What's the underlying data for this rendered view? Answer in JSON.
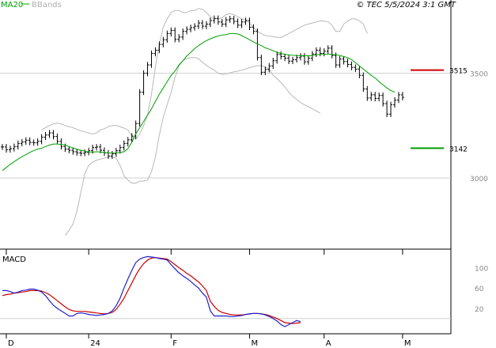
{
  "header": {
    "legend": [
      {
        "label": "MA20",
        "color": "#00a000"
      },
      {
        "label": "BBands",
        "color": "#b0b0b0"
      }
    ],
    "timestamp": "© TEC 5/5/2024 3:1 GMT"
  },
  "chart_data": [
    {
      "type": "line",
      "panel": "price",
      "title": "",
      "y_ticks": [
        {
          "label": "3500",
          "value": 3500
        },
        {
          "label": "3000",
          "value": 3000
        }
      ],
      "ylim": [
        2660,
        3850
      ],
      "x_ticks": [
        {
          "label": "D",
          "index": 1
        },
        {
          "label": "24",
          "index": 22
        },
        {
          "label": "F",
          "index": 43
        },
        {
          "label": "M",
          "index": 63
        },
        {
          "label": "A",
          "index": 82
        },
        {
          "label": "M",
          "index": 102
        }
      ],
      "levels": [
        {
          "label": "3515",
          "value": 3515,
          "color": "#cc0000"
        },
        {
          "label": "3142",
          "value": 3142,
          "color": "#00a000"
        }
      ],
      "close": [
        3148,
        3135,
        3140,
        3150,
        3165,
        3172,
        3180,
        3170,
        3168,
        3175,
        3195,
        3205,
        3215,
        3198,
        3175,
        3150,
        3138,
        3132,
        3125,
        3120,
        3118,
        3122,
        3130,
        3145,
        3148,
        3132,
        3120,
        3105,
        3115,
        3130,
        3145,
        3165,
        3182,
        3200,
        3260,
        3410,
        3500,
        3540,
        3595,
        3610,
        3638,
        3660,
        3690,
        3705,
        3662,
        3673,
        3700,
        3710,
        3718,
        3725,
        3740,
        3725,
        3735,
        3752,
        3762,
        3745,
        3735,
        3755,
        3760,
        3748,
        3730,
        3745,
        3752,
        3720,
        3700,
        3575,
        3505,
        3518,
        3535,
        3560,
        3590,
        3580,
        3572,
        3558,
        3565,
        3575,
        3582,
        3555,
        3572,
        3592,
        3610,
        3595,
        3605,
        3620,
        3585,
        3540,
        3568,
        3556,
        3542,
        3528,
        3520,
        3490,
        3425,
        3382,
        3397,
        3380,
        3394,
        3355,
        3305,
        3350,
        3372,
        3397,
        3385
      ],
      "ma20": [
        3035,
        3050,
        3065,
        3078,
        3090,
        3102,
        3112,
        3122,
        3131,
        3138,
        3142,
        3150,
        3157,
        3162,
        3162,
        3160,
        3157,
        3150,
        3142,
        3138,
        3132,
        3128,
        3124,
        3123,
        3125,
        3124,
        3122,
        3120,
        3119,
        3120,
        3122,
        3125,
        3140,
        3170,
        3210,
        3240,
        3270,
        3300,
        3330,
        3365,
        3400,
        3430,
        3460,
        3490,
        3510,
        3540,
        3560,
        3582,
        3600,
        3618,
        3632,
        3645,
        3656,
        3665,
        3672,
        3678,
        3683,
        3685,
        3690,
        3690,
        3688,
        3680,
        3670,
        3660,
        3650,
        3640,
        3632,
        3622,
        3615,
        3608,
        3600,
        3595,
        3590,
        3588,
        3586,
        3585,
        3584,
        3584,
        3583,
        3585,
        3588,
        3590,
        3590,
        3592,
        3590,
        3588,
        3585,
        3580,
        3575,
        3565,
        3550,
        3535,
        3520,
        3505,
        3490,
        3478,
        3460,
        3445,
        3430,
        3418,
        3410
      ],
      "bb_upper": [
        3230,
        3240,
        3250,
        3258,
        3262,
        3258,
        3250,
        3245,
        3240,
        3232,
        3226,
        3220,
        3215,
        3210,
        3215,
        3230,
        3235,
        3245,
        3250,
        3250,
        3245,
        3238,
        3230,
        3200,
        3185,
        3210,
        3250,
        3300,
        3400,
        3530,
        3640,
        3720,
        3760,
        3790,
        3800,
        3800,
        3790,
        3790,
        3800,
        3800,
        3810,
        3805,
        3790,
        3770,
        3760,
        3760,
        3765,
        3780,
        3785,
        3780,
        3770,
        3760,
        3755,
        3740,
        3720,
        3700,
        3690,
        3680,
        3678,
        3675,
        3672,
        3670,
        3680,
        3690,
        3700,
        3710,
        3720,
        3730,
        3735,
        3740,
        3745,
        3750,
        3750,
        3745,
        3730,
        3700,
        3700,
        3735,
        3750,
        3760,
        3760,
        3750,
        3735,
        3690
      ],
      "bb_lower": [
        2725,
        2750,
        2780,
        2840,
        2930,
        3020,
        3060,
        3075,
        3085,
        3090,
        3095,
        3100,
        3100,
        3095,
        3060,
        3010,
        2990,
        2975,
        2975,
        2985,
        2985,
        2990,
        3030,
        3100,
        3205,
        3290,
        3350,
        3410,
        3480,
        3535,
        3560,
        3570,
        3575,
        3575,
        3570,
        3552,
        3538,
        3525,
        3515,
        3500,
        3495,
        3497,
        3502,
        3507,
        3510,
        3515,
        3520,
        3527,
        3532,
        3536,
        3537,
        3530,
        3520,
        3490,
        3475,
        3455,
        3435,
        3410,
        3390,
        3375,
        3360,
        3350,
        3340,
        3330,
        3320,
        3310
      ],
      "bb_upper_start": 10,
      "bb_lower_start": 16
    },
    {
      "type": "line",
      "panel": "macd",
      "title": "MACD",
      "y_ticks": [
        {
          "label": "100",
          "value": 100
        },
        {
          "label": "60",
          "value": 60
        },
        {
          "label": "20",
          "value": 20
        }
      ],
      "ylim": [
        -30,
        135
      ],
      "macd": [
        55,
        55,
        53,
        50,
        52,
        55,
        56,
        58,
        58,
        56,
        52,
        45,
        35,
        26,
        20,
        15,
        10,
        5,
        5,
        10,
        11,
        10,
        8,
        7,
        6,
        7,
        8,
        10,
        15,
        25,
        40,
        60,
        78,
        95,
        110,
        117,
        120,
        122,
        121,
        120,
        118,
        117,
        115,
        106,
        98,
        90,
        84,
        79,
        73,
        66,
        60,
        50,
        42,
        15,
        5,
        5,
        5,
        5,
        4,
        4,
        5,
        6,
        8,
        9,
        10,
        10,
        9,
        7,
        4,
        0,
        -5,
        -12,
        -16,
        -12,
        -8,
        -4,
        -6
      ],
      "signal": [
        45,
        47,
        48,
        50,
        51,
        52,
        53,
        55,
        55,
        55,
        54,
        51,
        47,
        41,
        35,
        29,
        23,
        18,
        15,
        14,
        14,
        14,
        13,
        12,
        11,
        10,
        9,
        10,
        12,
        18,
        28,
        40,
        55,
        70,
        85,
        98,
        108,
        115,
        119,
        120,
        119,
        118,
        117,
        112,
        106,
        100,
        95,
        89,
        84,
        78,
        72,
        64,
        55,
        34,
        24,
        16,
        12,
        10,
        8,
        7,
        7,
        7,
        8,
        9,
        10,
        10,
        9,
        8,
        6,
        3,
        0,
        -4,
        -8,
        -9,
        -10,
        -9,
        -8
      ],
      "zero_value": 0
    }
  ]
}
